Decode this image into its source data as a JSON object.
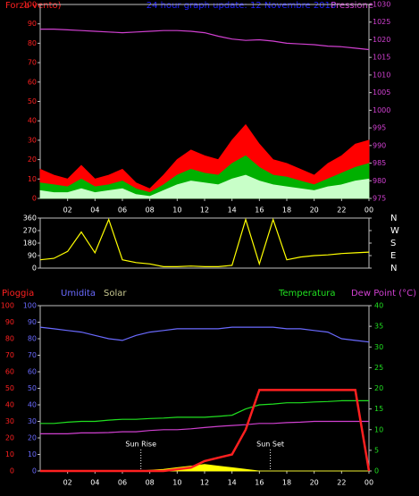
{
  "chart_data": [
    {
      "type": "line",
      "title": "24 hour graph update: 12 Novembre 2018",
      "x": [
        0,
        1,
        2,
        3,
        4,
        5,
        6,
        7,
        8,
        9,
        10,
        11,
        12,
        13,
        14,
        15,
        16,
        17,
        18,
        19,
        20,
        21,
        22,
        23,
        24
      ],
      "xlim": [
        0,
        24
      ],
      "xticks": [
        {
          "value": 2,
          "label": "02"
        },
        {
          "value": 4,
          "label": "04"
        },
        {
          "value": 6,
          "label": "06"
        },
        {
          "value": 8,
          "label": "08"
        },
        10,
        12,
        14,
        16,
        18,
        20,
        22,
        {
          "value": 24,
          "label": "00"
        }
      ],
      "ylim": [
        0,
        100
      ],
      "yticks": [
        0,
        10,
        20,
        30,
        40,
        50,
        60,
        70,
        80,
        90,
        100
      ],
      "ytick_colors": [
        "#ff2020"
      ],
      "y2lim": [
        975,
        1030
      ],
      "y2ticks": [
        975,
        980,
        985,
        990,
        995,
        1000,
        1005,
        1010,
        1015,
        1020,
        1025,
        1030
      ],
      "y2tick_color": "#d040d0",
      "series": [
        {
          "name": "Forza vento)",
          "color": "#ff0000",
          "area": true,
          "values": [
            15,
            12,
            10,
            17,
            10,
            12,
            15,
            8,
            5,
            12,
            20,
            25,
            22,
            20,
            30,
            38,
            28,
            20,
            18,
            15,
            12,
            18,
            22,
            28,
            30
          ]
        },
        {
          "color": "#00b000",
          "area": true,
          "values": [
            8,
            7,
            6,
            10,
            6,
            7,
            9,
            5,
            3,
            7,
            12,
            15,
            13,
            12,
            18,
            22,
            16,
            12,
            11,
            9,
            7,
            10,
            13,
            16,
            18
          ]
        },
        {
          "color": "#c8ffc8",
          "area": true,
          "values": [
            4,
            3,
            3,
            5,
            3,
            4,
            5,
            2,
            1,
            4,
            7,
            9,
            8,
            7,
            10,
            12,
            9,
            7,
            6,
            5,
            4,
            6,
            7,
            9,
            10
          ]
        },
        {
          "name": "Pressione",
          "color": "#d040d0",
          "axis": "y2",
          "values": [
            1023,
            1023,
            1022.8,
            1022.6,
            1022.4,
            1022.2,
            1022,
            1022.2,
            1022.4,
            1022.6,
            1022.6,
            1022.4,
            1022,
            1021,
            1020.2,
            1019.8,
            1020,
            1019.6,
            1019,
            1018.8,
            1018.6,
            1018.2,
            1018,
            1017.6,
            1017.2
          ]
        }
      ]
    },
    {
      "type": "line",
      "x": [
        0,
        1,
        2,
        3,
        4,
        5,
        6,
        7,
        8,
        9,
        10,
        11,
        12,
        13,
        14,
        15,
        16,
        17,
        18,
        19,
        20,
        21,
        22,
        23,
        24
      ],
      "xlim": [
        0,
        24
      ],
      "ylim": [
        0,
        360
      ],
      "yticks": [
        0,
        90,
        180,
        270,
        360
      ],
      "ytick_colors": [
        "#ffffff"
      ],
      "y2lim": [
        0,
        360
      ],
      "y2ticks": [
        {
          "value": 360,
          "label": "N"
        },
        {
          "value": 270,
          "label": "W"
        },
        {
          "value": 180,
          "label": "S"
        },
        {
          "value": 90,
          "label": "E"
        },
        {
          "value": 0,
          "label": "N"
        }
      ],
      "y2tick_color": "#ffffff",
      "series": [
        {
          "color": "#ffff00",
          "values": [
            60,
            70,
            120,
            260,
            110,
            350,
            60,
            40,
            30,
            10,
            10,
            15,
            10,
            10,
            20,
            350,
            30,
            350,
            60,
            80,
            90,
            95,
            105,
            110,
            115
          ]
        }
      ]
    },
    {
      "type": "line",
      "x": [
        0,
        1,
        2,
        3,
        4,
        5,
        6,
        7,
        8,
        9,
        10,
        11,
        12,
        13,
        14,
        15,
        16,
        17,
        18,
        19,
        20,
        21,
        22,
        23,
        24
      ],
      "xlim": [
        0,
        24
      ],
      "xticks": [
        {
          "value": 2,
          "label": "02"
        },
        {
          "value": 4,
          "label": "04"
        },
        {
          "value": 6,
          "label": "06"
        },
        {
          "value": 8,
          "label": "08"
        },
        10,
        12,
        14,
        16,
        18,
        20,
        22,
        {
          "value": 24,
          "label": "00"
        }
      ],
      "ylim": [
        0,
        100
      ],
      "yticks": [
        0,
        10,
        20,
        30,
        40,
        50,
        60,
        70,
        80,
        90,
        100
      ],
      "ytick_colors": [
        "#ff2020",
        "#6a6aff"
      ],
      "y2lim": [
        0,
        40
      ],
      "y2ticks": [
        0,
        5,
        10,
        15,
        20,
        25,
        30,
        35,
        40
      ],
      "y2tick_color": "#20e020",
      "annotations": [
        {
          "text": "Sun Rise",
          "x": 7.35
        },
        {
          "text": "Sun Set",
          "x": 16.8
        }
      ],
      "series": [
        {
          "name": "Solar",
          "color": "#ffff00",
          "area": true,
          "values": [
            0,
            0,
            0,
            0,
            0,
            0,
            0,
            0,
            0.5,
            1,
            2,
            3,
            4,
            3,
            2,
            1,
            0,
            0,
            0,
            0,
            0,
            0,
            0,
            0,
            0
          ]
        },
        {
          "name": "Umidita",
          "color": "#6a6aff",
          "values": [
            87,
            86,
            85,
            84,
            82,
            80,
            79,
            82,
            84,
            85,
            86,
            86,
            86,
            86,
            87,
            87,
            87,
            87,
            86,
            86,
            85,
            84,
            80,
            79,
            78
          ]
        },
        {
          "name": "Temperatura",
          "color": "#20e020",
          "axis": "y2",
          "values": [
            11.5,
            11.5,
            11.8,
            12,
            12,
            12.3,
            12.5,
            12.5,
            12.7,
            12.8,
            13,
            13,
            13,
            13.2,
            13.5,
            15,
            16,
            16.2,
            16.5,
            16.5,
            16.7,
            16.8,
            17,
            17,
            17
          ]
        },
        {
          "name": "Dew Point (°C)",
          "color": "#d040d0",
          "axis": "y2",
          "values": [
            9,
            9,
            9,
            9.2,
            9.2,
            9.3,
            9.5,
            9.5,
            9.8,
            10,
            10,
            10.2,
            10.5,
            10.8,
            11,
            11.2,
            11.5,
            11.5,
            11.7,
            11.8,
            12,
            12,
            12,
            12,
            12
          ]
        },
        {
          "name": "Pioggia",
          "color": "#ff2020",
          "width": 2.5,
          "values": [
            0,
            0,
            0,
            0,
            0,
            0,
            0,
            0,
            0,
            0,
            1,
            2,
            6,
            8,
            10,
            25,
            49,
            49,
            49,
            49,
            49,
            49,
            49,
            49,
            0
          ]
        }
      ]
    }
  ]
}
